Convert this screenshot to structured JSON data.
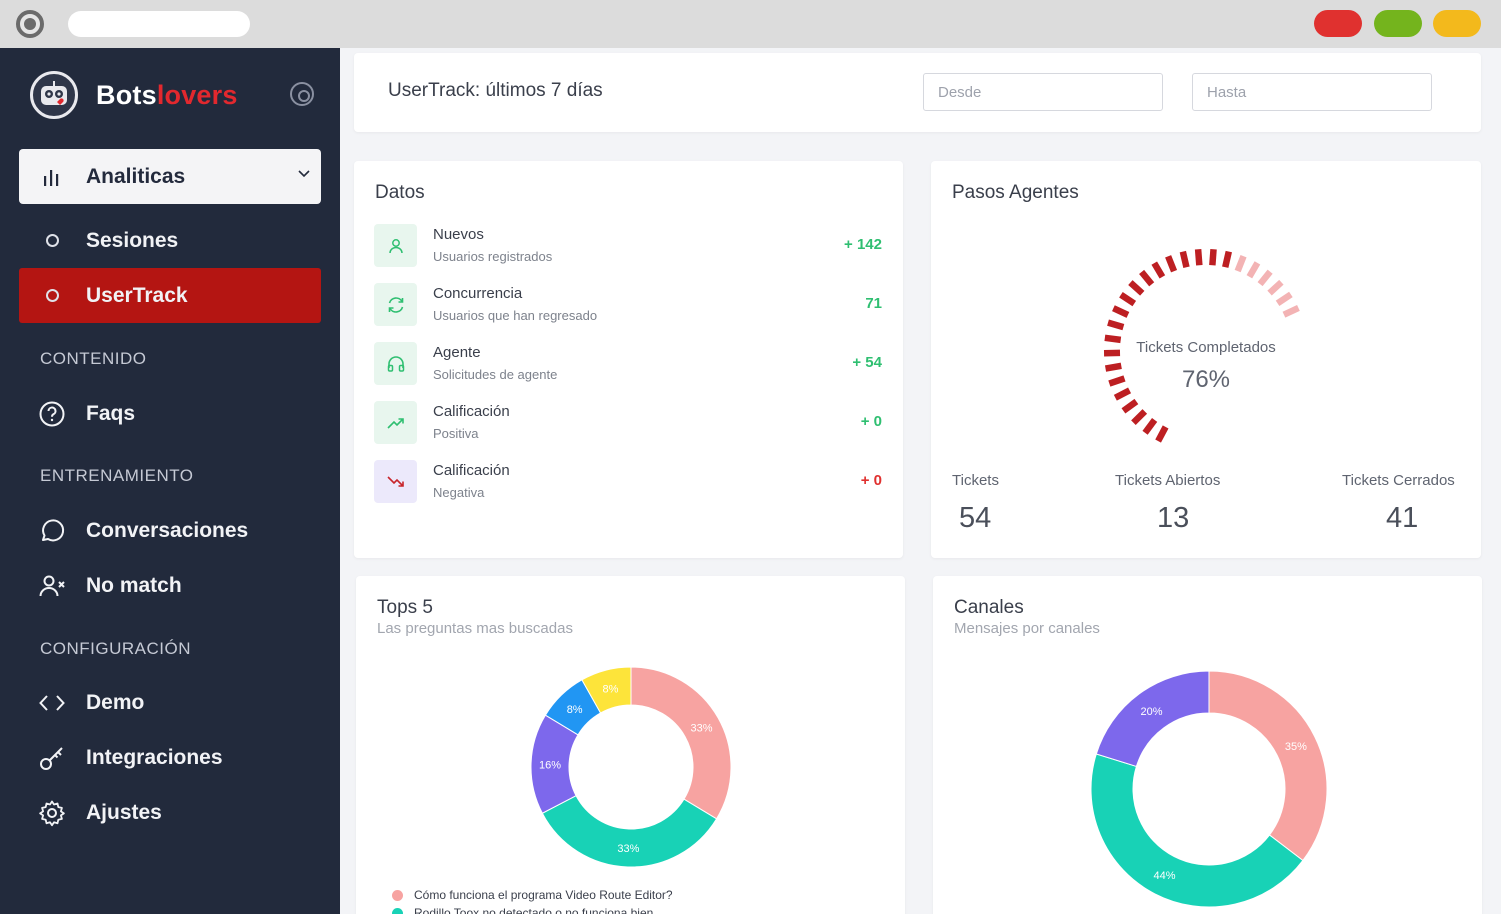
{
  "brand": {
    "name_part1": "Bots",
    "name_part2": "lovers",
    "accent": "#e2282e"
  },
  "sidebar": {
    "main": {
      "label": "Analiticas",
      "icon": "bar-chart-icon"
    },
    "sub_items": [
      {
        "label": "Sesiones",
        "active": false
      },
      {
        "label": "UserTrack",
        "active": true
      }
    ],
    "sections": [
      {
        "title": "CONTENIDO"
      },
      {
        "title": "ENTRENAMIENTO"
      },
      {
        "title": "CONFIGURACIÓN"
      }
    ],
    "items": {
      "faqs": "Faqs",
      "conversaciones": "Conversaciones",
      "no_match": "No match",
      "demo": "Demo",
      "integraciones": "Integraciones",
      "ajustes": "Ajustes"
    }
  },
  "header": {
    "title": "UserTrack: últimos 7 días",
    "desde_placeholder": "Desde",
    "hasta_placeholder": "Hasta"
  },
  "datos": {
    "title": "Datos",
    "rows": [
      {
        "title": "Nuevos",
        "subtitle": "Usuarios registrados",
        "value": "+ 142",
        "icon": "user-icon"
      },
      {
        "title": "Concurrencia",
        "subtitle": "Usuarios que han regresado",
        "value": "71",
        "icon": "refresh-icon"
      },
      {
        "title": "Agente",
        "subtitle": "Solicitudes de agente",
        "value": "+ 54",
        "icon": "headphones-icon"
      },
      {
        "title": "Calificación",
        "subtitle": "Positiva",
        "value": "+ 0",
        "icon": "trending-up-icon"
      },
      {
        "title": "Calificación",
        "subtitle": "Negativa",
        "value": "+ 0",
        "icon": "trending-down-icon"
      }
    ]
  },
  "pasos": {
    "title": "Pasos Agentes",
    "gauge_label": "Tickets Completados",
    "gauge_value": "76%",
    "gauge_fraction": 0.76,
    "stats": [
      {
        "label": "Tickets",
        "value": "54"
      },
      {
        "label": "Tickets Abiertos",
        "value": "13"
      },
      {
        "label": "Tickets Cerrados",
        "value": "41"
      }
    ]
  },
  "tops": {
    "title": "Tops 5",
    "subtitle": "Las preguntas mas buscadas",
    "legend": [
      {
        "label": "Cómo funciona el programa Video Route Editor?",
        "color": "#f7a3a1"
      },
      {
        "label": "Rodillo Toox no detectado o no funciona bien",
        "color": "#18d2b6"
      }
    ]
  },
  "canales": {
    "title": "Canales",
    "subtitle": "Mensajes por canales"
  },
  "chart_data": [
    {
      "type": "pie",
      "title": "Tops 5",
      "slices": [
        {
          "label": "33%",
          "value": 33,
          "color": "#f7a3a1"
        },
        {
          "label": "33%",
          "value": 33,
          "color": "#18d2b6"
        },
        {
          "label": "16%",
          "value": 16,
          "color": "#7d68ec"
        },
        {
          "label": "8%",
          "value": 8,
          "color": "#2196f3"
        },
        {
          "label": "8%",
          "value": 8,
          "color": "#fde43a"
        }
      ]
    },
    {
      "type": "pie",
      "title": "Canales",
      "slices": [
        {
          "label": "35%",
          "value": 35,
          "color": "#f7a3a1"
        },
        {
          "label": "44%",
          "value": 44,
          "color": "#18d2b6"
        },
        {
          "label": "20%",
          "value": 20,
          "color": "#7d68ec"
        }
      ]
    }
  ]
}
